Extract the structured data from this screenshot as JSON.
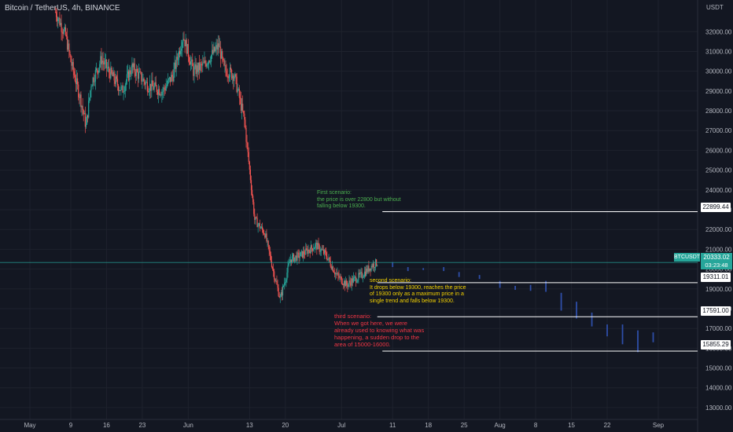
{
  "header": {
    "title": "Bitcoin / TetherUS, 4h, BINANCE",
    "currency": "USDT"
  },
  "annotations": {
    "first": "First scenario:\nthe price is over 22800 but without\nfalling below 19300.",
    "second": "second scenario:\nIt drops below 19300, reaches the price\nof 19300 only as a maximum price in a\nsingle trend and falls below 19300.",
    "third": "third scenario:\nWhen we got here, we were\nalready used to knowing what was\nhappening, a sudden drop to the\narea of 15000-16000."
  },
  "price_tags": {
    "p1": "22899.44",
    "p2": "19311.01",
    "p3": "17591.00",
    "p4": "15855.29"
  },
  "live": {
    "symbol": "BTCUSDT",
    "price": "20333.02",
    "timer": "03:23:48"
  },
  "colors": {
    "background": "#131722",
    "up": "#26a69a",
    "down": "#ef5350",
    "projection": "#2e4ea8",
    "grid": "#1e222d"
  },
  "chart_data": {
    "type": "candlestick",
    "ylim": [
      12400,
      33600
    ],
    "y_ticks": [
      13000,
      14000,
      15000,
      16000,
      17000,
      18000,
      19000,
      20000,
      21000,
      22000,
      23000,
      24000,
      25000,
      26000,
      27000,
      28000,
      29000,
      30000,
      31000,
      32000
    ],
    "y_tick_labels": [
      "13000.00",
      "14000.00",
      "15000.00",
      "16000.00",
      "17000.00",
      "18000.00",
      "19000.00",
      "20000.00",
      "21000.00",
      "22000.00",
      "23000.00",
      "24000.00",
      "25000.00",
      "26000.00",
      "27000.00",
      "28000.00",
      "29000.00",
      "30000.00",
      "31000.00",
      "32000.00"
    ],
    "x_ticks": [
      "May",
      "9",
      "16",
      "23",
      "Jun",
      "13",
      "20",
      "Jul",
      "11",
      "18",
      "25",
      "Aug",
      "8",
      "15",
      "22",
      "Sep"
    ],
    "x_tick_dates": [
      "2022-05-01",
      "2022-05-09",
      "2022-05-16",
      "2022-05-23",
      "2022-06-01",
      "2022-06-13",
      "2022-06-20",
      "2022-07-01",
      "2022-07-11",
      "2022-07-18",
      "2022-07-25",
      "2022-08-01",
      "2022-08-08",
      "2022-08-15",
      "2022-08-22",
      "2022-09-01"
    ],
    "x_range": [
      "2022-05-01",
      "2022-09-01"
    ],
    "price_path": [
      [
        "2022-05-01",
        33700
      ],
      [
        "2022-05-06",
        33000
      ],
      [
        "2022-05-08",
        31800
      ],
      [
        "2022-05-09",
        30500
      ],
      [
        "2022-05-11",
        28500
      ],
      [
        "2022-05-12",
        27200
      ],
      [
        "2022-05-13",
        29400
      ],
      [
        "2022-05-15",
        30600
      ],
      [
        "2022-05-17",
        29800
      ],
      [
        "2022-05-19",
        29000
      ],
      [
        "2022-05-21",
        30200
      ],
      [
        "2022-05-24",
        29300
      ],
      [
        "2022-05-27",
        29000
      ],
      [
        "2022-05-29",
        29800
      ],
      [
        "2022-05-31",
        31800
      ],
      [
        "2022-06-02",
        30000
      ],
      [
        "2022-06-04",
        30300
      ],
      [
        "2022-06-07",
        31300
      ],
      [
        "2022-06-08",
        30100
      ],
      [
        "2022-06-10",
        29800
      ],
      [
        "2022-06-12",
        27500
      ],
      [
        "2022-06-13",
        25000
      ],
      [
        "2022-06-14",
        22500
      ],
      [
        "2022-06-16",
        21800
      ],
      [
        "2022-06-18",
        19500
      ],
      [
        "2022-06-19",
        18500
      ],
      [
        "2022-06-21",
        20500
      ],
      [
        "2022-06-23",
        20700
      ],
      [
        "2022-06-26",
        21200
      ],
      [
        "2022-06-28",
        20700
      ],
      [
        "2022-06-30",
        19700
      ],
      [
        "2022-07-02",
        19200
      ],
      [
        "2022-07-03",
        19400
      ],
      [
        "2022-07-05",
        19700
      ],
      [
        "2022-07-07",
        20200
      ],
      [
        "2022-07-08",
        20333
      ]
    ],
    "projection": [
      {
        "date": "2022-07-11",
        "high": 20350,
        "low": 20100
      },
      {
        "date": "2022-07-14",
        "high": 20100,
        "low": 19900
      },
      {
        "date": "2022-07-17",
        "high": 20050,
        "low": 19950
      },
      {
        "date": "2022-07-21",
        "high": 20100,
        "low": 19900
      },
      {
        "date": "2022-07-24",
        "high": 19850,
        "low": 19600
      },
      {
        "date": "2022-07-28",
        "high": 19700,
        "low": 19500
      },
      {
        "date": "2022-08-01",
        "high": 19400,
        "low": 19050
      },
      {
        "date": "2022-08-04",
        "high": 19150,
        "low": 18950
      },
      {
        "date": "2022-08-07",
        "high": 19200,
        "low": 18900
      },
      {
        "date": "2022-08-10",
        "high": 19400,
        "low": 18850
      },
      {
        "date": "2022-08-13",
        "high": 18800,
        "low": 17900
      },
      {
        "date": "2022-08-16",
        "high": 18350,
        "low": 17500
      },
      {
        "date": "2022-08-19",
        "high": 17800,
        "low": 17100
      },
      {
        "date": "2022-08-22",
        "high": 17200,
        "low": 16600
      },
      {
        "date": "2022-08-25",
        "high": 17200,
        "low": 16200
      },
      {
        "date": "2022-08-28",
        "high": 16900,
        "low": 15800
      },
      {
        "date": "2022-08-31",
        "high": 16800,
        "low": 16300
      }
    ],
    "levels": [
      {
        "price": 22899.44,
        "from": "2022-07-09",
        "label": "22899.44"
      },
      {
        "price": 19311.01,
        "from": "2022-07-08",
        "label": "19311.01"
      },
      {
        "price": 17591.0,
        "from": "2022-07-08",
        "label": "17591.00"
      },
      {
        "price": 15855.29,
        "from": "2022-07-09",
        "label": "15855.29"
      }
    ],
    "last_price": 20333.02
  }
}
